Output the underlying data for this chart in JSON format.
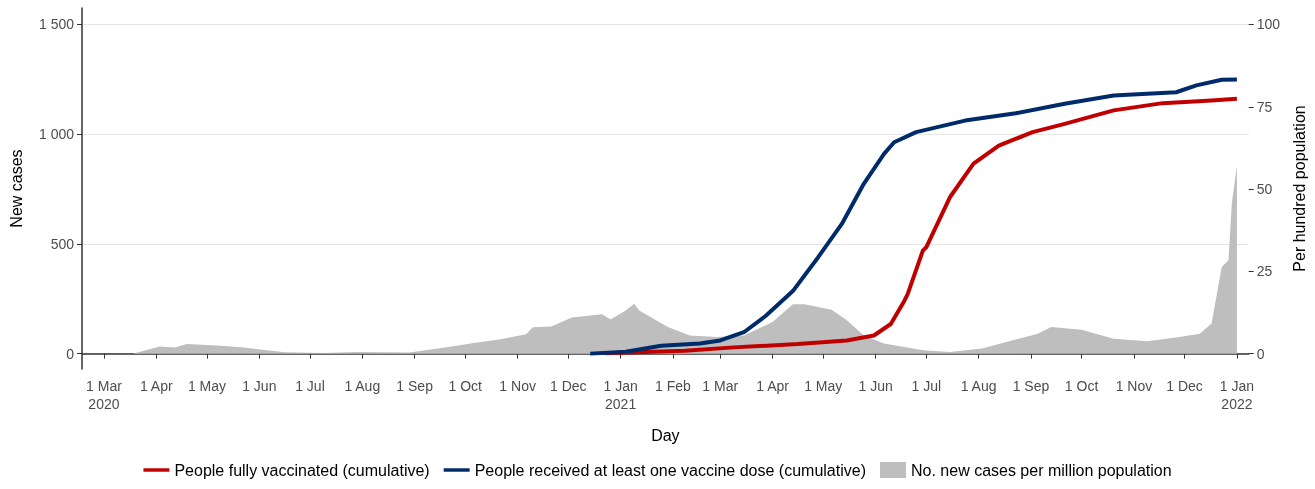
{
  "chart_data": {
    "type": "line",
    "xlabel": "Day",
    "ylabel": "New cases",
    "y2label": "Per hundred population",
    "xlim": [
      "2020-02-17",
      "2022-01-08"
    ],
    "xticks": [
      {
        "value": "2020-03-01",
        "label": "1 Mar\n2020"
      },
      {
        "value": "2020-04-01",
        "label": "1 Apr"
      },
      {
        "value": "2020-05-01",
        "label": "1 May"
      },
      {
        "value": "2020-06-01",
        "label": "1 Jun"
      },
      {
        "value": "2020-07-01",
        "label": "1 Jul"
      },
      {
        "value": "2020-08-01",
        "label": "1 Aug"
      },
      {
        "value": "2020-09-01",
        "label": "1 Sep"
      },
      {
        "value": "2020-10-01",
        "label": "1 Oct"
      },
      {
        "value": "2020-11-01",
        "label": "1 Nov"
      },
      {
        "value": "2020-12-01",
        "label": "1 Dec"
      },
      {
        "value": "2021-01-01",
        "label": "1 Jan\n2021"
      },
      {
        "value": "2021-02-01",
        "label": "1 Feb"
      },
      {
        "value": "2021-03-01",
        "label": "1 Mar"
      },
      {
        "value": "2021-04-01",
        "label": "1 Apr"
      },
      {
        "value": "2021-05-01",
        "label": "1 May"
      },
      {
        "value": "2021-06-01",
        "label": "1 Jun"
      },
      {
        "value": "2021-07-01",
        "label": "1 Jul"
      },
      {
        "value": "2021-08-01",
        "label": "1 Aug"
      },
      {
        "value": "2021-09-01",
        "label": "1 Sep"
      },
      {
        "value": "2021-10-01",
        "label": "1 Oct"
      },
      {
        "value": "2021-11-01",
        "label": "1 Nov"
      },
      {
        "value": "2021-12-01",
        "label": "1 Dec"
      },
      {
        "value": "2022-01-01",
        "label": "1 Jan\n2022"
      }
    ],
    "ylim": [
      -70,
      1575
    ],
    "yticks": [
      0,
      500,
      {
        "value": 1000,
        "label": "1 000"
      },
      {
        "value": 1500,
        "label": "1 500"
      }
    ],
    "y2lim": [
      -4.67,
      105
    ],
    "y2ticks": [
      0,
      25,
      50,
      75,
      100
    ],
    "grid": "y",
    "legend": "bottom",
    "series": [
      {
        "name": "No. new cases per million population",
        "type": "area",
        "color": "#bebebe",
        "x": [
          "2020-03-18",
          "2020-04-03",
          "2020-04-12",
          "2020-04-19",
          "2020-05-07",
          "2020-05-23",
          "2020-06-16",
          "2020-07-09",
          "2020-07-29",
          "2020-08-29",
          "2020-09-19",
          "2020-10-06",
          "2020-10-21",
          "2020-11-06",
          "2020-11-10",
          "2020-11-21",
          "2020-12-03",
          "2020-12-21",
          "2020-12-26",
          "2021-01-04",
          "2021-01-09",
          "2021-01-12",
          "2021-01-29",
          "2021-02-11",
          "2021-02-27",
          "2021-03-15",
          "2021-04-01",
          "2021-04-13",
          "2021-04-20",
          "2021-05-06",
          "2021-05-15",
          "2021-05-25",
          "2021-06-06",
          "2021-06-29",
          "2021-07-15",
          "2021-08-03",
          "2021-08-23",
          "2021-09-05",
          "2021-09-13",
          "2021-10-01",
          "2021-10-20",
          "2021-11-09",
          "2021-11-28",
          "2021-12-10",
          "2021-12-17",
          "2021-12-23",
          "2021-12-27",
          "2021-12-29",
          "2022-01-01"
        ],
        "values": [
          0,
          32,
          28,
          44,
          37,
          28,
          6,
          3,
          8,
          5,
          28,
          48,
          64,
          88,
          120,
          124,
          165,
          180,
          155,
          197,
          227,
          197,
          121,
          83,
          76,
          83,
          144,
          225,
          225,
          200,
          152,
          83,
          46,
          15,
          7,
          23,
          64,
          91,
          121,
          109,
          68,
          57,
          76,
          91,
          137,
          395,
          425,
          684,
          857
        ]
      },
      {
        "name": "People fully vaccinated (cumulative)",
        "axis": "y2",
        "color": "#c00000",
        "x": [
          "2020-12-23",
          "2021-02-08",
          "2021-03-09",
          "2021-04-16",
          "2021-05-15",
          "2021-05-31",
          "2021-06-10",
          "2021-06-18",
          "2021-06-20",
          "2021-06-29",
          "2021-07-01",
          "2021-07-15",
          "2021-07-29",
          "2021-08-13",
          "2021-09-02",
          "2021-09-21",
          "2021-10-20",
          "2021-11-18",
          "2021-12-17",
          "2022-01-01"
        ],
        "values": [
          0.1,
          0.9,
          1.9,
          2.9,
          4.0,
          5.5,
          9,
          16,
          18.1,
          31.3,
          32.3,
          47.5,
          57.7,
          63.2,
          67.3,
          69.8,
          73.9,
          76.1,
          76.9,
          77.4
        ]
      },
      {
        "name": "People received at least one vaccine dose (cumulative)",
        "axis": "y2",
        "color": "#002b6b",
        "x": [
          "2020-12-14",
          "2021-01-04",
          "2021-01-25",
          "2021-02-17",
          "2021-03-01",
          "2021-03-15",
          "2021-03-28",
          "2021-04-13",
          "2021-04-28",
          "2021-05-12",
          "2021-05-25",
          "2021-06-06",
          "2021-06-12",
          "2021-06-25",
          "2021-07-24",
          "2021-08-23",
          "2021-09-21",
          "2021-10-20",
          "2021-11-26",
          "2021-12-08",
          "2021-12-23",
          "2022-01-01"
        ],
        "values": [
          0,
          0.6,
          2.4,
          3.1,
          4.0,
          6.5,
          11.5,
          19,
          29.3,
          39.4,
          51.6,
          60.7,
          64.2,
          67.3,
          70.8,
          73.0,
          75.9,
          78.4,
          79.4,
          81.5,
          83.2,
          83.3
        ]
      }
    ]
  }
}
